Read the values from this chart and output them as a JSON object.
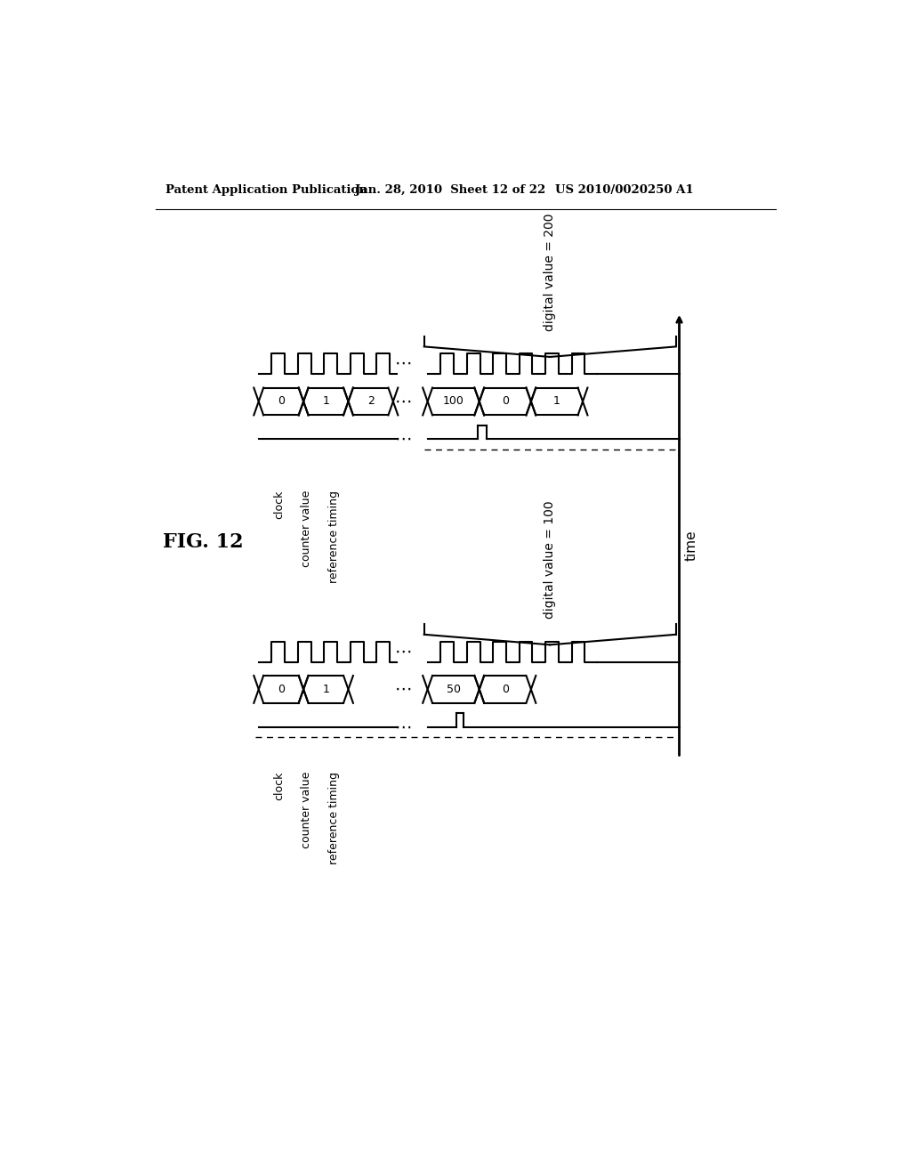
{
  "header_left": "Patent Application Publication",
  "header_mid": "Jan. 28, 2010  Sheet 12 of 22",
  "header_right": "US 2010/0020250 A1",
  "fig_label": "FIG. 12",
  "time_label": "time",
  "top_group": {
    "digital_value_label": "digital value = 200",
    "clock_label": "clock",
    "counter_label": "counter value",
    "ref_label": "reference timing",
    "segs_early": [
      "0",
      "1",
      "2"
    ],
    "segs_late": [
      "100",
      "0",
      "1"
    ]
  },
  "bottom_group": {
    "digital_value_label": "digital value = 100",
    "clock_label": "clock",
    "counter_label": "counter value",
    "ref_label": "reference timing",
    "segs_early": [
      "0",
      "1"
    ],
    "segs_late": [
      "50",
      "0"
    ]
  }
}
